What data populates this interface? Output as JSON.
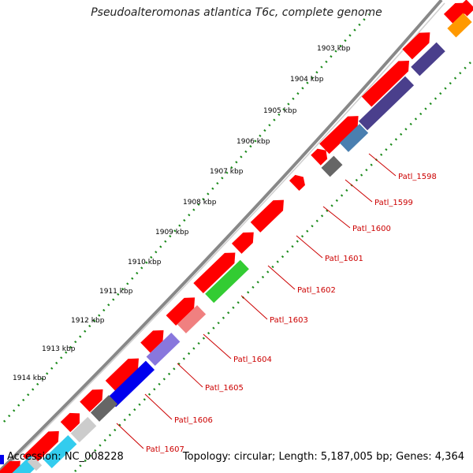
{
  "title": "Pseudoalteromonas atlantica T6c, complete genome",
  "footer": {
    "accession": "Accession: NC_008228",
    "summary": "Topology: circular; Length: 5,187,005 bp; Genes: 4,364"
  },
  "ticks": [
    "1903 kbp",
    "1904 kbp",
    "1905 kbp",
    "1906 kbp",
    "1907 kbp",
    "1908 kbp",
    "1909 kbp",
    "1910 kbp",
    "1911 kbp",
    "1912 kbp",
    "1913 kbp",
    "1914 kbp"
  ],
  "genes": [
    "Patl_1598",
    "Patl_1599",
    "Patl_1600",
    "Patl_1601",
    "Patl_1602",
    "Patl_1603",
    "Patl_1604",
    "Patl_1605",
    "Patl_1606",
    "Patl_1607"
  ],
  "colors": {
    "cds": "#ff0000",
    "tick_dots": "#1a8a1a",
    "backbone": "#888888",
    "label": "#cc0000",
    "cog_dark": "#4a3f8c",
    "cog_steel": "#4a7fb0",
    "cog_gray": "#666666",
    "cog_green": "#33cc33",
    "cog_pink": "#f08080",
    "cog_lavender": "#8877dd",
    "cog_blue": "#0000ee",
    "cog_light_gray": "#cccccc",
    "cog_cyan": "#33ccee",
    "cog_orange": "#ff9900"
  }
}
